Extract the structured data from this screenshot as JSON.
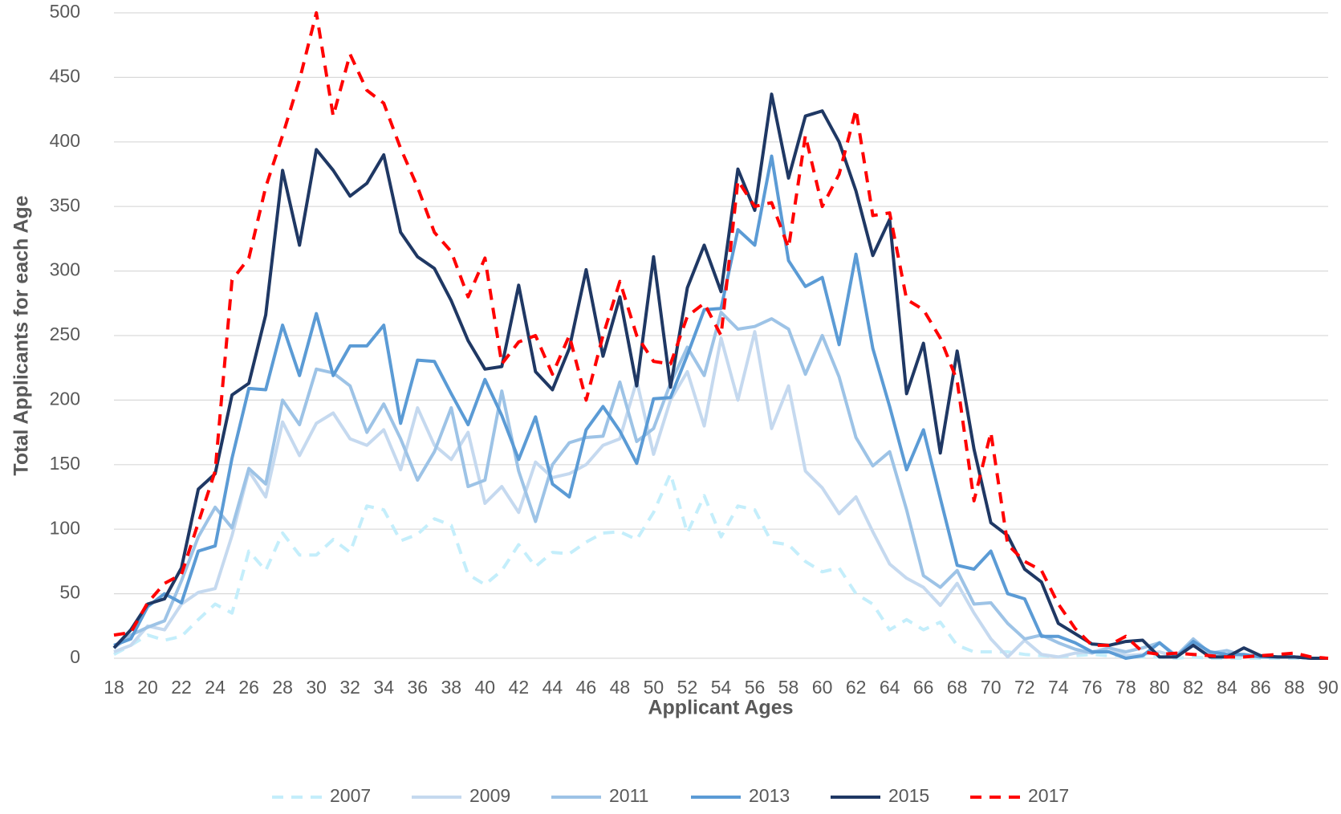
{
  "chart_data": {
    "type": "line",
    "x_label": "Applicant Ages",
    "y_label": "Total Applicants for each Age",
    "x": [
      18,
      19,
      20,
      21,
      22,
      23,
      24,
      25,
      26,
      27,
      28,
      29,
      30,
      31,
      32,
      33,
      34,
      35,
      36,
      37,
      38,
      39,
      40,
      41,
      42,
      43,
      44,
      45,
      46,
      47,
      48,
      49,
      50,
      51,
      52,
      53,
      54,
      55,
      56,
      57,
      58,
      59,
      60,
      61,
      62,
      63,
      64,
      65,
      66,
      67,
      68,
      69,
      70,
      71,
      72,
      73,
      74,
      75,
      76,
      77,
      78,
      79,
      80,
      81,
      82,
      83,
      84,
      85,
      86,
      87,
      88,
      89,
      90
    ],
    "xlim": [
      18,
      90
    ],
    "xticks": [
      18,
      20,
      22,
      24,
      26,
      28,
      30,
      32,
      34,
      36,
      38,
      40,
      42,
      44,
      46,
      48,
      50,
      52,
      54,
      56,
      58,
      60,
      62,
      64,
      66,
      68,
      70,
      72,
      74,
      76,
      78,
      80,
      82,
      84,
      86,
      88,
      90
    ],
    "ylim": [
      0,
      500
    ],
    "yticks": [
      0,
      50,
      100,
      150,
      200,
      250,
      300,
      350,
      400,
      450,
      500
    ],
    "grid": true,
    "legend": "bottom",
    "series": [
      {
        "name": "2007",
        "color": "#c4eefb",
        "dashed": true,
        "values": [
          3,
          10,
          18,
          14,
          17,
          30,
          42,
          35,
          83,
          68,
          97,
          80,
          80,
          92,
          82,
          118,
          115,
          91,
          96,
          108,
          103,
          65,
          57,
          68,
          88,
          71,
          82,
          81,
          90,
          97,
          98,
          92,
          113,
          143,
          97,
          126,
          94,
          118,
          115,
          90,
          88,
          75,
          67,
          70,
          50,
          42,
          22,
          30,
          22,
          28,
          10,
          5,
          5,
          5,
          3,
          2,
          1,
          2,
          3,
          2,
          2,
          1,
          1,
          0,
          1,
          0,
          0,
          0,
          0,
          0,
          0,
          0,
          0
        ]
      },
      {
        "name": "2009",
        "color": "#c5d9ef",
        "dashed": false,
        "values": [
          5,
          10,
          25,
          22,
          42,
          51,
          54,
          95,
          145,
          125,
          183,
          157,
          182,
          190,
          170,
          165,
          177,
          146,
          194,
          165,
          154,
          175,
          120,
          133,
          113,
          152,
          140,
          143,
          150,
          165,
          170,
          215,
          158,
          200,
          222,
          180,
          248,
          200,
          253,
          178,
          211,
          145,
          132,
          112,
          125,
          98,
          73,
          62,
          55,
          41,
          58,
          35,
          15,
          1,
          14,
          3,
          1,
          4,
          5,
          8,
          2,
          3,
          5,
          1,
          10,
          3,
          3,
          2,
          1,
          1,
          1,
          0,
          0
        ]
      },
      {
        "name": "2011",
        "color": "#9dc3e6",
        "dashed": false,
        "values": [
          8,
          18,
          24,
          29,
          60,
          94,
          117,
          101,
          147,
          135,
          200,
          181,
          224,
          221,
          211,
          175,
          197,
          170,
          138,
          160,
          194,
          133,
          138,
          207,
          145,
          106,
          150,
          167,
          171,
          172,
          214,
          168,
          178,
          213,
          241,
          219,
          268,
          255,
          257,
          263,
          255,
          220,
          250,
          218,
          171,
          149,
          160,
          115,
          64,
          55,
          68,
          42,
          43,
          27,
          15,
          18,
          12,
          7,
          4,
          8,
          5,
          8,
          12,
          2,
          15,
          4,
          6,
          2,
          1,
          1,
          1,
          0,
          0
        ]
      },
      {
        "name": "2013",
        "color": "#5b9bd5",
        "dashed": false,
        "values": [
          10,
          15,
          40,
          50,
          43,
          83,
          87,
          155,
          209,
          208,
          258,
          219,
          267,
          219,
          242,
          242,
          258,
          182,
          231,
          230,
          205,
          181,
          216,
          188,
          154,
          187,
          135,
          125,
          177,
          195,
          176,
          151,
          201,
          202,
          235,
          270,
          271,
          332,
          320,
          389,
          308,
          288,
          295,
          243,
          313,
          240,
          195,
          146,
          177,
          124,
          72,
          69,
          83,
          50,
          46,
          17,
          17,
          12,
          5,
          5,
          0,
          2,
          12,
          1,
          13,
          5,
          3,
          3,
          1,
          1,
          1,
          0,
          0
        ]
      },
      {
        "name": "2015",
        "color": "#1f3864",
        "dashed": false,
        "values": [
          8,
          22,
          42,
          46,
          70,
          131,
          143,
          204,
          213,
          266,
          378,
          320,
          394,
          378,
          358,
          368,
          390,
          330,
          311,
          302,
          277,
          246,
          224,
          226,
          289,
          222,
          208,
          240,
          301,
          234,
          280,
          211,
          311,
          210,
          287,
          320,
          284,
          379,
          347,
          437,
          372,
          420,
          424,
          400,
          362,
          312,
          340,
          205,
          244,
          159,
          238,
          162,
          105,
          95,
          69,
          59,
          27,
          19,
          11,
          10,
          13,
          14,
          1,
          1,
          10,
          1,
          1,
          8,
          2,
          1,
          1,
          0,
          0
        ]
      },
      {
        "name": "2017",
        "color": "#ff0000",
        "dashed": true,
        "values": [
          18,
          20,
          43,
          58,
          65,
          105,
          145,
          293,
          310,
          365,
          405,
          448,
          500,
          420,
          468,
          440,
          430,
          395,
          365,
          330,
          315,
          280,
          310,
          228,
          245,
          250,
          220,
          250,
          200,
          250,
          292,
          250,
          230,
          228,
          265,
          275,
          250,
          370,
          350,
          353,
          318,
          405,
          350,
          375,
          425,
          343,
          345,
          278,
          270,
          248,
          215,
          122,
          175,
          88,
          75,
          68,
          42,
          23,
          10,
          10,
          17,
          5,
          3,
          4,
          3,
          2,
          1,
          1,
          2,
          3,
          4,
          1,
          0
        ]
      }
    ]
  }
}
